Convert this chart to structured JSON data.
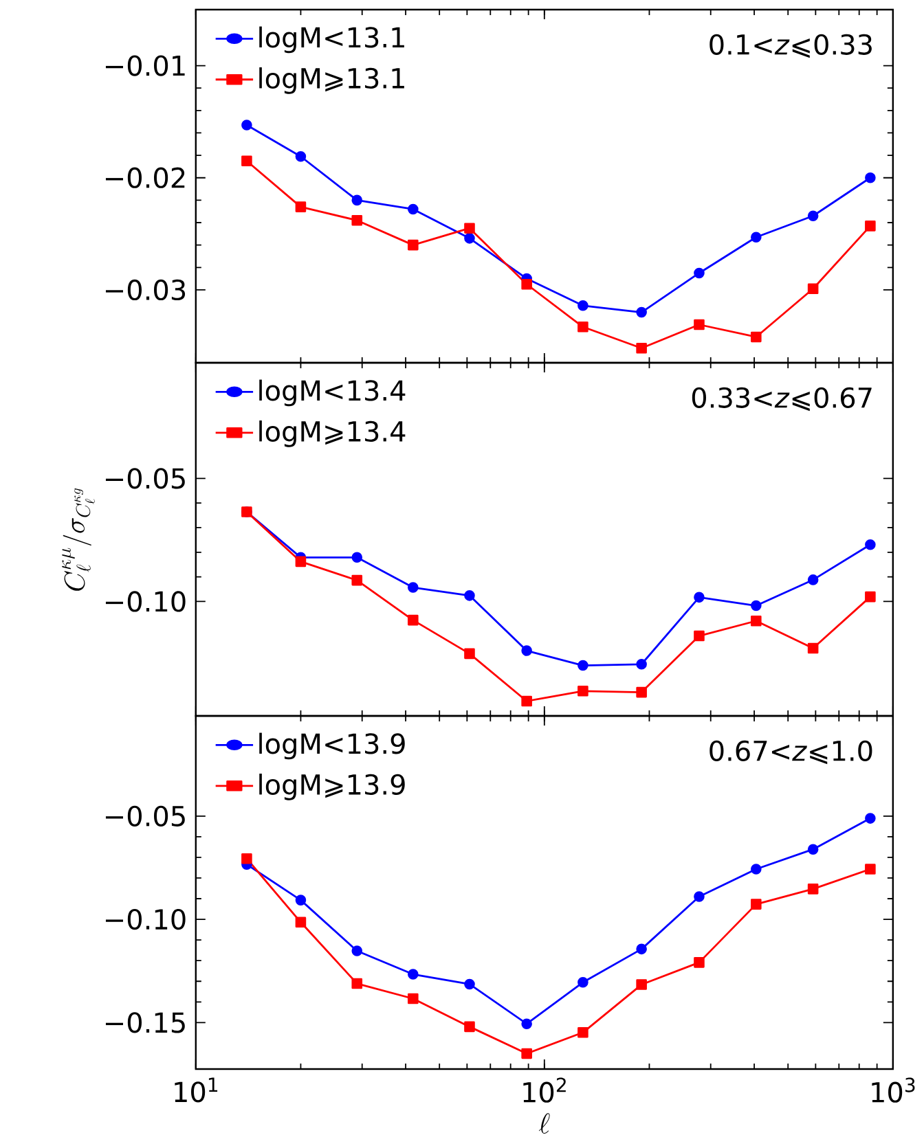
{
  "chart_data": [
    {
      "type": "line",
      "x": [
        14,
        20,
        29,
        42,
        61,
        89,
        129,
        190,
        278,
        405,
        590,
        861
      ],
      "log": "x",
      "xlim": [
        10,
        1000
      ],
      "xticks": [
        {
          "value": 10,
          "label": null
        },
        {
          "value": 100,
          "label": null
        },
        {
          "value": 1000,
          "label": null
        }
      ],
      "ylim": [
        -0.0365,
        -0.005
      ],
      "yticks": [
        {
          "value": -0.03,
          "label": "−0.03"
        },
        {
          "value": -0.02,
          "label": "−0.02"
        },
        {
          "value": -0.01,
          "label": "−0.01"
        }
      ],
      "tick_labels": "y",
      "legend": "top left",
      "grid": false,
      "line_style": "solid",
      "annotations": [
        "0.1<*z*⩽0.33"
      ],
      "series": [
        {
          "name": "logM<13.1",
          "color": "#0000ff",
          "marker": "circle",
          "values": [
            -0.0153,
            -0.0181,
            -0.022,
            -0.0228,
            -0.0254,
            -0.029,
            -0.0314,
            -0.032,
            -0.0285,
            -0.0253,
            -0.0234,
            -0.02
          ]
        },
        {
          "name": "logM⩾13.1",
          "color": "#ff0000",
          "marker": "square",
          "values": [
            -0.0185,
            -0.0226,
            -0.0238,
            -0.026,
            -0.0245,
            -0.0295,
            -0.0333,
            -0.0352,
            -0.0331,
            -0.0342,
            -0.0299,
            -0.0243
          ]
        }
      ]
    },
    {
      "type": "line",
      "x": [
        14,
        20,
        29,
        42,
        61,
        89,
        129,
        190,
        278,
        405,
        590,
        861
      ],
      "log": "x",
      "xlim": [
        10,
        1000
      ],
      "xticks": [
        {
          "value": 10,
          "label": null
        },
        {
          "value": 100,
          "label": null
        },
        {
          "value": 1000,
          "label": null
        }
      ],
      "ylim": [
        -0.1465,
        -0.003
      ],
      "yticks": [
        {
          "value": -0.1,
          "label": "−0.10"
        },
        {
          "value": -0.05,
          "label": "−0.05"
        }
      ],
      "tick_labels": "y",
      "legend": "top left",
      "grid": false,
      "line_style": "solid",
      "ylabel": "C_\\ell^{\\kappa\\mu}/\\sigma_{C_\\ell^{\\kappa g}}",
      "annotations": [
        "0.33<*z*⩽0.67"
      ],
      "series": [
        {
          "name": "logM<13.4",
          "color": "#0000ff",
          "marker": "circle",
          "values": [
            -0.0636,
            -0.0821,
            -0.0821,
            -0.0943,
            -0.0976,
            -0.12,
            -0.126,
            -0.1255,
            -0.0983,
            -0.1017,
            -0.0912,
            -0.0769
          ]
        },
        {
          "name": "logM⩾13.4",
          "color": "#ff0000",
          "marker": "square",
          "values": [
            -0.0636,
            -0.0838,
            -0.0914,
            -0.1076,
            -0.1212,
            -0.1405,
            -0.1364,
            -0.1369,
            -0.114,
            -0.1079,
            -0.119,
            -0.0981
          ]
        }
      ]
    },
    {
      "type": "line",
      "x": [
        14,
        20,
        29,
        42,
        61,
        89,
        129,
        190,
        278,
        405,
        590,
        861
      ],
      "log": "x",
      "xlim": [
        10,
        1000
      ],
      "xticks": [
        {
          "value": 10,
          "label": "10$^{1}$"
        },
        {
          "value": 100,
          "label": "10$^{2}$"
        },
        {
          "value": 1000,
          "label": "10$^{3}$"
        }
      ],
      "ylim": [
        -0.1725,
        -0.0015
      ],
      "yticks": [
        {
          "value": -0.15,
          "label": "−0.15"
        },
        {
          "value": -0.1,
          "label": "−0.10"
        },
        {
          "value": -0.05,
          "label": "−0.05"
        }
      ],
      "legend": "top left",
      "grid": false,
      "line_style": "solid",
      "xlabel": "\\ell",
      "annotations": [
        "0.67<*z*⩽1.0"
      ],
      "series": [
        {
          "name": "logM<13.9",
          "color": "#0000ff",
          "marker": "circle",
          "values": [
            -0.0734,
            -0.0907,
            -0.1153,
            -0.1266,
            -0.1314,
            -0.1506,
            -0.1305,
            -0.1144,
            -0.089,
            -0.0757,
            -0.0661,
            -0.0511
          ]
        },
        {
          "name": "logM⩾13.9",
          "color": "#ff0000",
          "marker": "square",
          "values": [
            -0.0706,
            -0.1014,
            -0.1311,
            -0.1384,
            -0.152,
            -0.165,
            -0.1548,
            -0.1316,
            -0.1209,
            -0.0927,
            -0.0853,
            -0.0757
          ]
        }
      ]
    }
  ]
}
